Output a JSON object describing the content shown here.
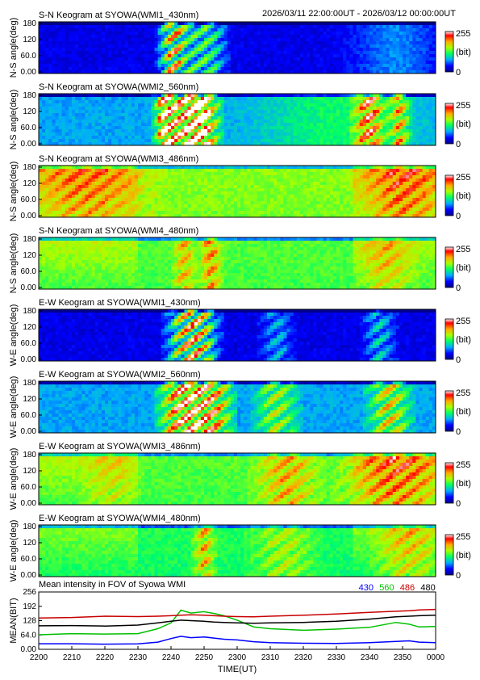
{
  "header": {
    "time_range": "2026/03/11 22:00:00UT - 2026/03/12 00:00:00UT"
  },
  "colorbar": {
    "max_label": "255",
    "unit_label": "(bit)",
    "min_label": "0"
  },
  "keograms": [
    {
      "title": "S-N Keogram at SYOWA(WMI1_430nm)",
      "ylabel": "N-S angle(deg)",
      "base": 0.12,
      "bursts": [
        [
          2243,
          4,
          0.55
        ],
        [
          2252,
          3,
          0.45
        ],
        [
          2240,
          2,
          0.4
        ]
      ],
      "glow": [
        [
          2348,
          8,
          0.15
        ]
      ]
    },
    {
      "title": "S-N Keogram at SYOWA(WMI2_560nm)",
      "ylabel": "N-S angle(deg)",
      "base": 0.3,
      "bursts": [
        [
          2244,
          4,
          0.75
        ],
        [
          2250,
          3,
          0.7
        ],
        [
          2238,
          2,
          0.6
        ],
        [
          2340,
          3,
          0.6
        ],
        [
          2349,
          2,
          0.5
        ]
      ],
      "glow": [
        [
          2330,
          15,
          0.15
        ]
      ]
    },
    {
      "title": "S-N Keogram at SYOWA(WMI3_486nm)",
      "ylabel": "N-S angle(deg)",
      "base": 0.55,
      "bursts": [
        [
          2215,
          12,
          0.25
        ],
        [
          2350,
          8,
          0.3
        ]
      ],
      "glow": []
    },
    {
      "title": "S-N Keogram at SYOWA(WMI4_480nm)",
      "ylabel": "N-S angle(deg)",
      "base": 0.5,
      "bursts": [
        [
          2244,
          2,
          0.3
        ],
        [
          2252,
          2,
          0.35
        ],
        [
          2345,
          5,
          0.2
        ]
      ],
      "glow": []
    },
    {
      "title": "E-W Keogram at SYOWA(WMI1_430nm)",
      "ylabel": "W-E angle(deg)",
      "base": 0.12,
      "bursts": [
        [
          2243,
          3,
          0.55
        ],
        [
          2250,
          3,
          0.5
        ],
        [
          2247,
          3,
          0.35
        ],
        [
          2312,
          3,
          0.25
        ],
        [
          2343,
          3,
          0.3
        ]
      ],
      "glow": []
    },
    {
      "title": "E-W Keogram at SYOWA(WMI2_560nm)",
      "ylabel": "W-E angle(deg)",
      "base": 0.3,
      "bursts": [
        [
          2243,
          4,
          0.75
        ],
        [
          2252,
          4,
          0.7
        ],
        [
          2312,
          4,
          0.4
        ],
        [
          2346,
          4,
          0.5
        ]
      ],
      "glow": []
    },
    {
      "title": "E-W Keogram at SYOWA(WMI3_486nm)",
      "ylabel": "W-E angle(deg)",
      "base": 0.5,
      "bursts": [
        [
          2315,
          6,
          0.3
        ],
        [
          2348,
          10,
          0.35
        ],
        [
          2222,
          5,
          0.15
        ]
      ],
      "glow": []
    },
    {
      "title": "E-W Keogram at SYOWA(WMI4_480nm)",
      "ylabel": "W-E angle(deg)",
      "base": 0.45,
      "bursts": [
        [
          2250,
          2,
          0.35
        ],
        [
          2314,
          6,
          0.2
        ],
        [
          2352,
          6,
          0.25
        ]
      ],
      "glow": []
    }
  ],
  "keogram_yticks": [
    "0.00",
    "60.0",
    "120",
    "180"
  ],
  "chart_data": {
    "type": "line",
    "title": "Mean intensity in FOV of Syowa WMI",
    "xlabel": "TIME(UT)",
    "ylabel": "MEAN(BIT)",
    "xticks": [
      "2200",
      "2210",
      "2220",
      "2230",
      "2240",
      "2250",
      "2300",
      "2310",
      "2320",
      "2330",
      "2340",
      "2350",
      "0000"
    ],
    "yticks": [
      "0.00",
      "64.0",
      "128",
      "192",
      "256"
    ],
    "ylim": [
      0,
      256
    ],
    "x": [
      0,
      10,
      20,
      30,
      36,
      40,
      43,
      46,
      50,
      53,
      56,
      60,
      65,
      70,
      80,
      90,
      100,
      108,
      112,
      115,
      120
    ],
    "series": [
      {
        "name": "430",
        "color": "#0000ff",
        "values": [
          25,
          25,
          23,
          24,
          32,
          48,
          58,
          52,
          55,
          50,
          45,
          42,
          34,
          30,
          27,
          26,
          30,
          35,
          38,
          32,
          30
        ]
      },
      {
        "name": "560",
        "color": "#00c000",
        "values": [
          65,
          70,
          68,
          70,
          92,
          118,
          175,
          162,
          168,
          160,
          150,
          130,
          100,
          92,
          85,
          90,
          98,
          120,
          112,
          100,
          102
        ]
      },
      {
        "name": "486",
        "color": "#c80000",
        "values": [
          140,
          142,
          148,
          146,
          148,
          150,
          152,
          154,
          152,
          150,
          148,
          146,
          145,
          148,
          152,
          158,
          165,
          170,
          172,
          176,
          178
        ]
      },
      {
        "name": "480",
        "color": "#000000",
        "values": [
          105,
          106,
          104,
          108,
          118,
          125,
          130,
          128,
          125,
          122,
          120,
          118,
          116,
          118,
          120,
          125,
          135,
          145,
          148,
          150,
          152
        ]
      }
    ]
  }
}
